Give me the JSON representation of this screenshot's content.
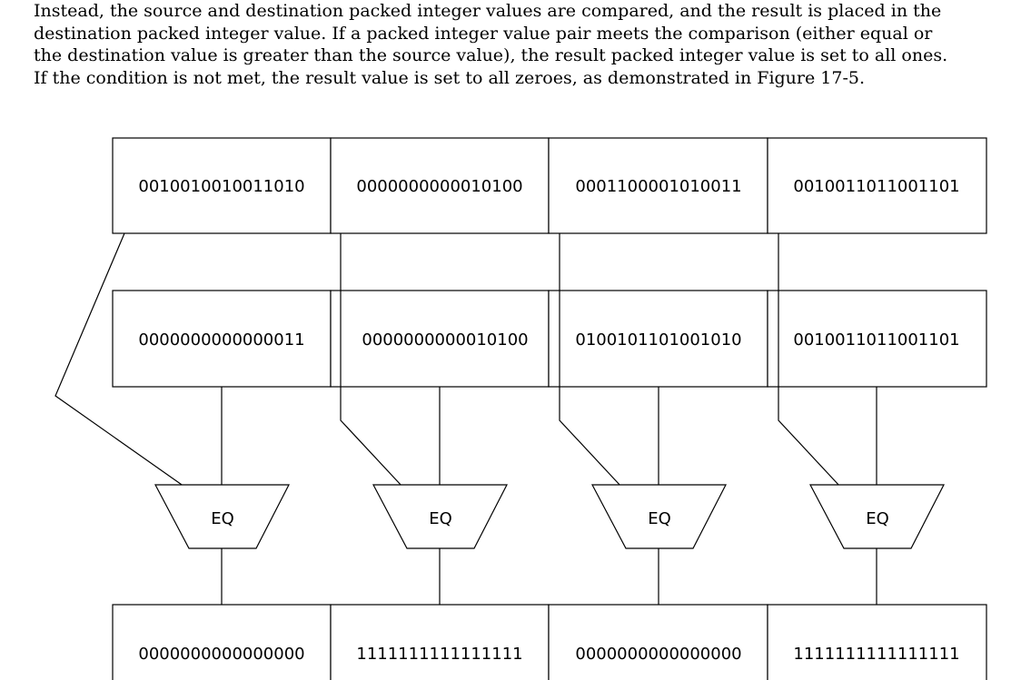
{
  "intro_lines": [
    "Instead, the source and destination packed integer values are compared, and the result is placed in the",
    "destination packed integer value. If a packed integer value pair meets the comparison (either equal or",
    "the destination value is greater than the source value), the result packed integer value is set to all ones.",
    "If the condition is not met, the result value is set to all zeroes, as demonstrated in Figure 17-5."
  ],
  "source_values": [
    "0010010010011010",
    "0000000000010100",
    "0001100001010011",
    "0010011011001101"
  ],
  "destination_values": [
    "0000000000000011",
    "0000000000010100",
    "0100101101001010",
    "0010011011001101"
  ],
  "comparators": [
    "EQ",
    "EQ",
    "EQ",
    "EQ"
  ],
  "result_values": [
    "0000000000000000",
    "1111111111111111",
    "0000000000000000",
    "1111111111111111"
  ]
}
